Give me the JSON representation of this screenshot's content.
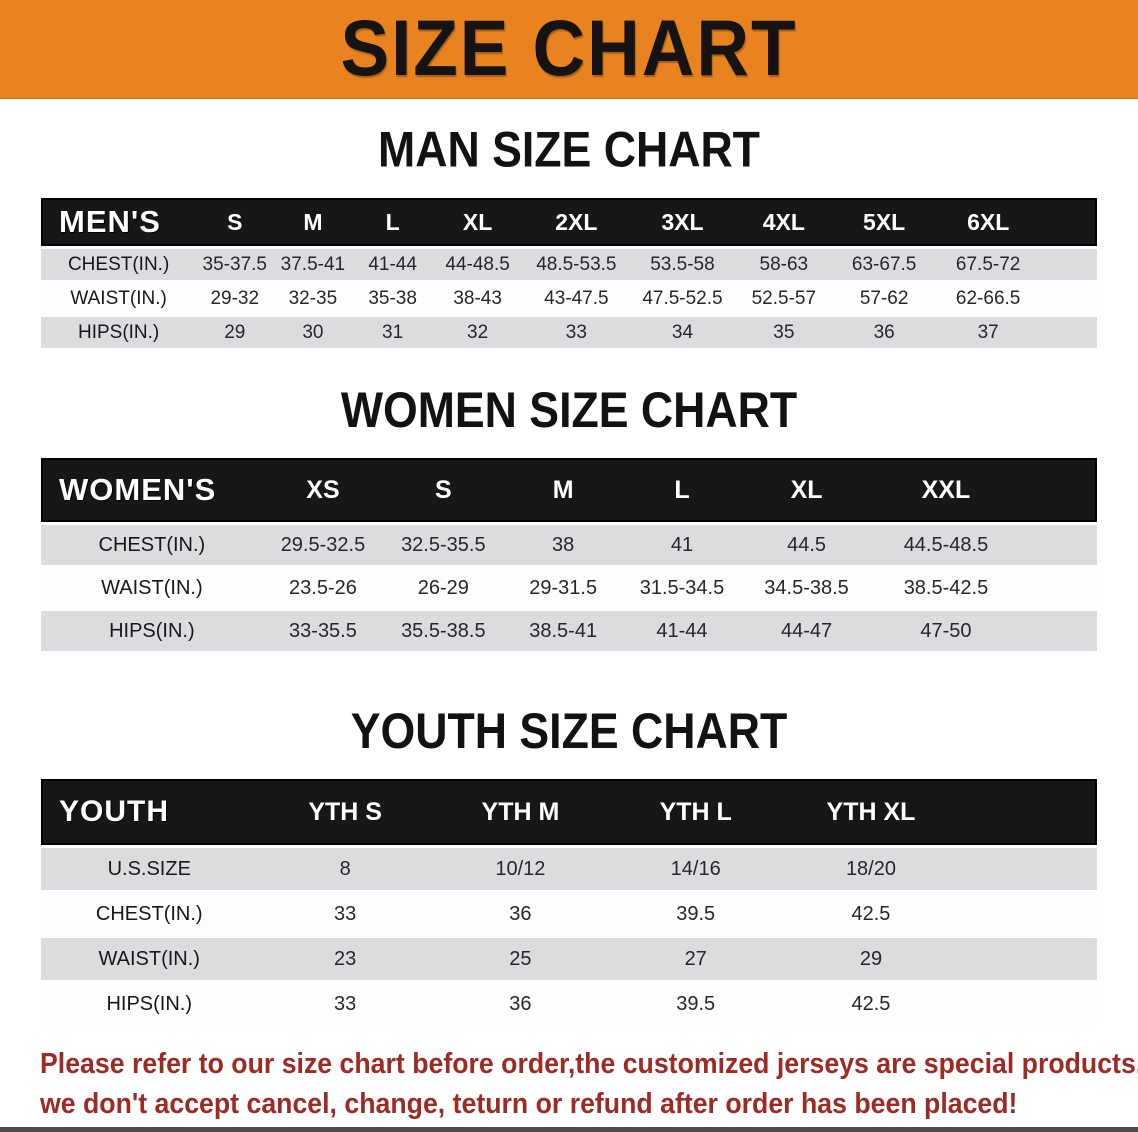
{
  "banner": {
    "title": "SIZE CHART",
    "bg_color": "#E8831F"
  },
  "sections": [
    {
      "heading": "MAN SIZE CHART",
      "table": {
        "corner_label": "MEN'S",
        "columns": [
          "S",
          "M",
          "L",
          "XL",
          "2XL",
          "3XL",
          "4XL",
          "5XL",
          "6XL"
        ],
        "rows": [
          {
            "label": "CHEST(IN.)",
            "values": [
              "35-37.5",
              "37.5-41",
              "41-44",
              "44-48.5",
              "48.5-53.5",
              "53.5-58",
              "58-63",
              "63-67.5",
              "67.5-72"
            ]
          },
          {
            "label": "WAIST(IN.)",
            "values": [
              "29-32",
              "32-35",
              "35-38",
              "38-43",
              "43-47.5",
              "47.5-52.5",
              "52.5-57",
              "57-62",
              "62-66.5"
            ]
          },
          {
            "label": "HIPS(IN.)",
            "values": [
              "29",
              "30",
              "31",
              "32",
              "33",
              "34",
              "35",
              "36",
              "37"
            ]
          }
        ]
      }
    },
    {
      "heading": "WOMEN SIZE CHART",
      "table": {
        "corner_label": "WOMEN'S",
        "columns": [
          "XS",
          "S",
          "M",
          "L",
          "XL",
          "XXL"
        ],
        "rows": [
          {
            "label": "CHEST(IN.)",
            "values": [
              "29.5-32.5",
              "32.5-35.5",
              "38",
              "41",
              "44.5",
              "44.5-48.5"
            ]
          },
          {
            "label": "WAIST(IN.)",
            "values": [
              "23.5-26",
              "26-29",
              "29-31.5",
              "31.5-34.5",
              "34.5-38.5",
              "38.5-42.5"
            ]
          },
          {
            "label": "HIPS(IN.)",
            "values": [
              "33-35.5",
              "35.5-38.5",
              "38.5-41",
              "41-44",
              "44-47",
              "47-50"
            ]
          }
        ]
      }
    },
    {
      "heading": "YOUTH SIZE CHART",
      "table": {
        "corner_label": "YOUTH",
        "columns": [
          "YTH S",
          "YTH M",
          "YTH L",
          "YTH XL"
        ],
        "rows": [
          {
            "label": "U.S.SIZE",
            "values": [
              "8",
              "10/12",
              "14/16",
              "18/20"
            ]
          },
          {
            "label": "CHEST(IN.)",
            "values": [
              "33",
              "36",
              "39.5",
              "42.5"
            ]
          },
          {
            "label": "WAIST(IN.)",
            "values": [
              "23",
              "25",
              "27",
              "29"
            ]
          },
          {
            "label": "HIPS(IN.)",
            "values": [
              "33",
              "36",
              "39.5",
              "42.5"
            ]
          }
        ]
      }
    }
  ],
  "disclaimer": {
    "color": "#9E2A24",
    "lines": [
      "Please refer to our size chart before order,the customized jerseys are special products,",
      "we don't accept cancel, change, teturn or refund after order has been placed!"
    ]
  }
}
